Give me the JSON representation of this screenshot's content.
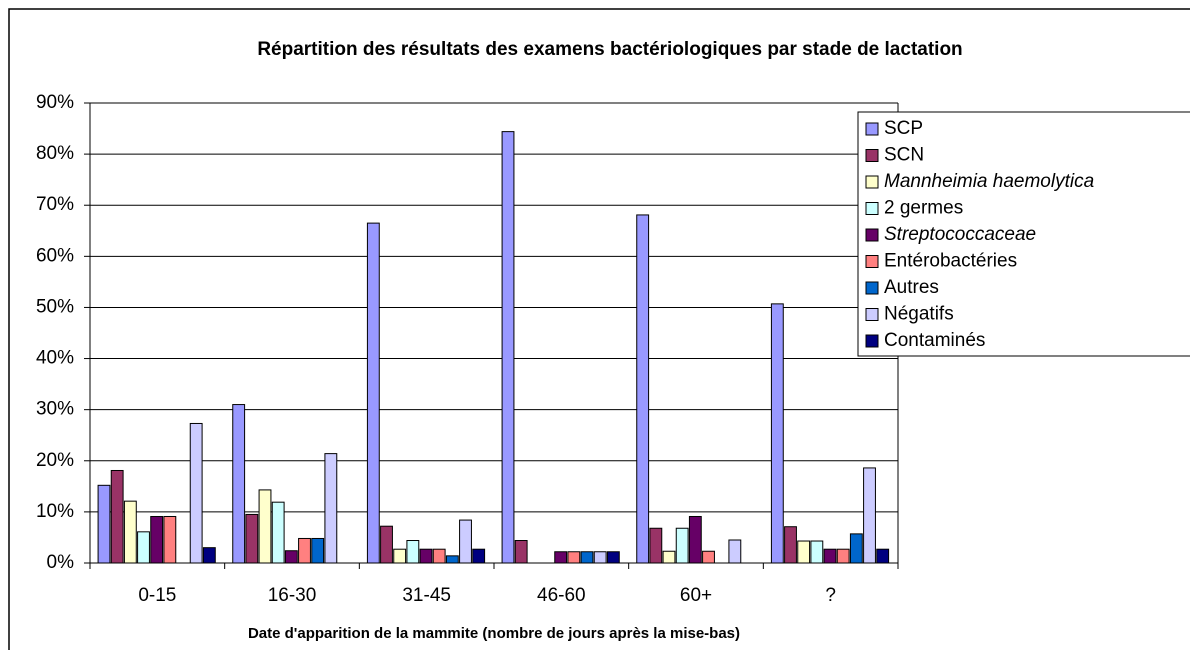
{
  "chart_data": {
    "type": "bar",
    "title": "Répartition des résultats des examens bactériologiques par stade de lactation",
    "xlabel": "Date d'apparition de la mammite (nombre de jours après la mise-bas)",
    "categories": [
      "0-15",
      "16-30",
      "31-45",
      "46-60",
      "60+",
      "?"
    ],
    "series": [
      {
        "name": "SCP",
        "color": "#9999ff",
        "values": [
          15.2,
          31,
          66.5,
          84.4,
          68.1,
          50.7
        ]
      },
      {
        "name": "SCN",
        "color": "#993366",
        "values": [
          18.1,
          9.5,
          7.2,
          4.4,
          6.8,
          7.1
        ]
      },
      {
        "name": "Mannheimia haemolytica",
        "color": "#ffffcc",
        "italic": true,
        "values": [
          12.1,
          14.3,
          2.7,
          0,
          2.3,
          4.3
        ]
      },
      {
        "name": "2 germes",
        "color": "#ccffff",
        "values": [
          6.1,
          11.9,
          4.4,
          0,
          6.8,
          4.3
        ]
      },
      {
        "name": "Streptococcaceae",
        "color": "#660066",
        "italic": true,
        "values": [
          9.1,
          2.4,
          2.7,
          2.2,
          9.1,
          2.7
        ]
      },
      {
        "name": "Entérobactéries",
        "color": "#ff8080",
        "values": [
          9.1,
          4.8,
          2.7,
          2.2,
          2.3,
          2.7
        ]
      },
      {
        "name": "Autres",
        "color": "#0066cc",
        "values": [
          0,
          4.8,
          1.4,
          2.2,
          0,
          5.7
        ]
      },
      {
        "name": "Négatifs",
        "color": "#ccccff",
        "values": [
          27.3,
          21.4,
          8.4,
          2.2,
          4.5,
          18.6
        ]
      },
      {
        "name": "Contaminés",
        "color": "#000080",
        "values": [
          3.0,
          0,
          2.7,
          2.2,
          0,
          2.7
        ]
      }
    ],
    "ylim": [
      0,
      90
    ],
    "yticks": [
      {
        "value": 0,
        "label": "0%"
      },
      {
        "value": 10,
        "label": "10%"
      },
      {
        "value": 20,
        "label": "20%"
      },
      {
        "value": 30,
        "label": "30%"
      },
      {
        "value": 40,
        "label": "40%"
      },
      {
        "value": 50,
        "label": "50%"
      },
      {
        "value": 60,
        "label": "60%"
      },
      {
        "value": 70,
        "label": "70%"
      },
      {
        "value": 80,
        "label": "80%"
      },
      {
        "value": 90,
        "label": "90%"
      }
    ],
    "grid": true,
    "legend": "right"
  }
}
